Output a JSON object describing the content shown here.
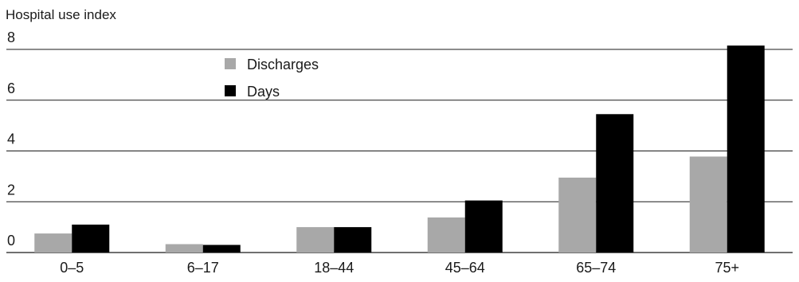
{
  "chart_data": {
    "type": "bar",
    "ylabel": "Hospital use index",
    "ylim": [
      0,
      8
    ],
    "yticks": [
      0,
      2,
      4,
      6,
      8
    ],
    "grid": true,
    "legend_placement": "top-left-inside",
    "categories": [
      "0–5",
      "6–17",
      "18–44",
      "45–64",
      "65–74",
      "75+"
    ],
    "series": [
      {
        "name": "Discharges",
        "color": "#a8a8a8",
        "values": [
          0.75,
          0.33,
          1.0,
          1.38,
          2.95,
          3.78
        ]
      },
      {
        "name": "Days",
        "color": "#000000",
        "values": [
          1.1,
          0.3,
          1.0,
          2.05,
          5.45,
          8.15
        ]
      }
    ]
  }
}
